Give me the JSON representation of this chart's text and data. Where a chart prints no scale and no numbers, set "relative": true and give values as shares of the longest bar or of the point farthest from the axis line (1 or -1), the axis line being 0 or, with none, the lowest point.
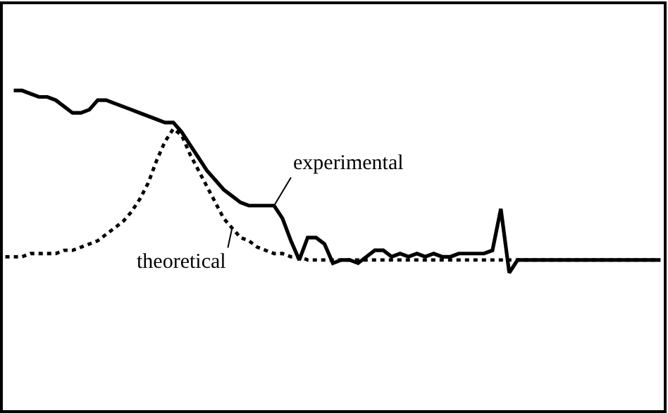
{
  "chart_data": {
    "type": "line",
    "relative": true,
    "categories": [
      null,
      null,
      null,
      null,
      null,
      null,
      null,
      null,
      null,
      null,
      null,
      null,
      null,
      null,
      null,
      null,
      null,
      null,
      null,
      null,
      null,
      null,
      null,
      null,
      null,
      null,
      null,
      null,
      null,
      null,
      null,
      null,
      null,
      null,
      null,
      null,
      null,
      null,
      null,
      null,
      null,
      null,
      null,
      null,
      null,
      null,
      null,
      null,
      null,
      null,
      null,
      null,
      null,
      null,
      null,
      null,
      null,
      null,
      null,
      null,
      null,
      null,
      null,
      null,
      null,
      null,
      null,
      null,
      null,
      null,
      null,
      null,
      null,
      null,
      null,
      null,
      null,
      null,
      null
    ],
    "series": [
      {
        "name": "experimental",
        "color": "#000000",
        "line_style": "solid",
        "values": [
          null,
          1.0,
          1.0,
          0.99,
          0.98,
          0.98,
          0.97,
          0.95,
          0.93,
          0.93,
          0.94,
          0.97,
          0.97,
          0.96,
          0.95,
          0.94,
          0.93,
          0.92,
          0.91,
          0.9,
          0.9,
          0.87,
          0.83,
          0.79,
          0.75,
          0.72,
          0.69,
          0.67,
          0.65,
          0.64,
          0.64,
          0.64,
          0.64,
          0.6,
          0.53,
          0.47,
          0.54,
          0.54,
          0.52,
          0.46,
          0.47,
          0.47,
          0.46,
          0.48,
          0.5,
          0.5,
          0.48,
          0.49,
          0.48,
          0.49,
          0.48,
          0.49,
          0.48,
          0.48,
          0.49,
          0.49,
          0.49,
          0.49,
          0.5,
          0.63,
          0.43,
          0.47,
          0.47,
          0.47,
          0.47,
          0.47,
          0.47,
          0.47,
          0.47,
          0.47,
          0.47,
          0.47,
          0.47,
          0.47,
          0.47,
          0.47,
          0.47,
          0.47,
          0.47
        ]
      },
      {
        "name": "theoretical",
        "color": "#000000",
        "line_style": "dotted",
        "values": [
          0.48,
          0.48,
          0.48,
          0.49,
          0.49,
          0.49,
          0.49,
          0.5,
          0.5,
          0.51,
          0.52,
          0.53,
          0.55,
          0.57,
          0.59,
          0.62,
          0.66,
          0.71,
          0.78,
          0.84,
          0.88,
          0.86,
          0.8,
          0.75,
          0.7,
          0.65,
          0.6,
          0.57,
          0.54,
          0.53,
          0.51,
          0.5,
          0.49,
          0.49,
          0.48,
          0.48,
          0.47,
          0.47,
          0.47,
          0.47,
          0.47,
          0.47,
          0.47,
          0.47,
          0.47,
          0.47,
          0.47,
          0.47,
          0.47,
          0.47,
          0.47,
          0.47,
          0.47,
          0.47,
          0.47,
          0.47,
          0.47,
          0.47,
          0.47,
          0.47,
          0.47,
          0.47,
          0.47,
          0.47,
          0.47,
          0.47,
          0.47,
          0.47,
          0.47,
          0.47,
          0.47,
          0.47,
          0.47,
          0.47,
          0.47,
          0.47,
          0.47,
          0.47,
          0.47
        ]
      }
    ]
  }
}
